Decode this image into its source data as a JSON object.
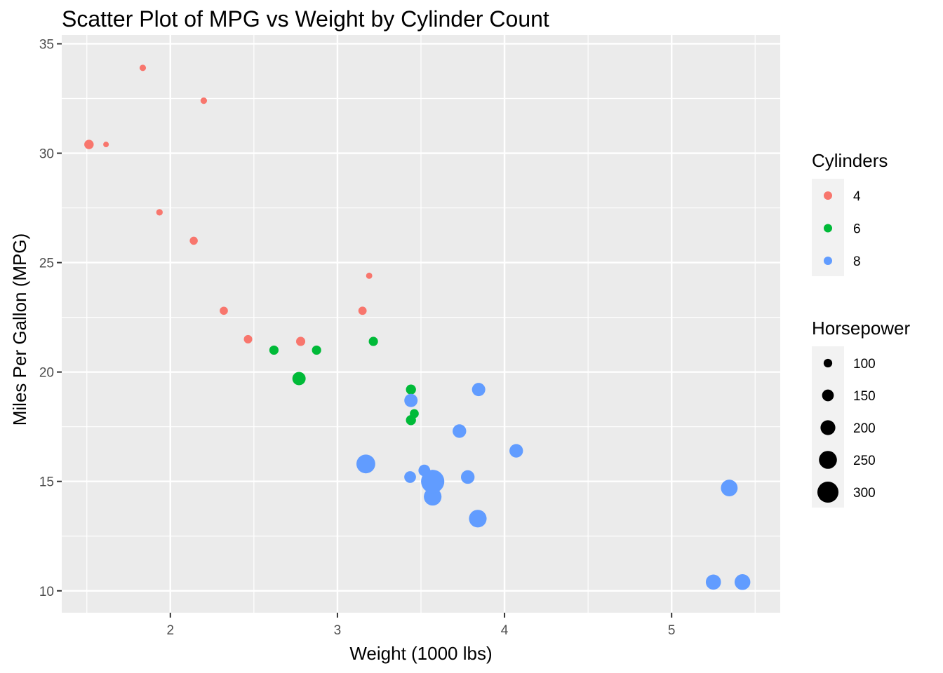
{
  "chart_data": {
    "type": "scatter",
    "title": "Scatter Plot of MPG vs Weight by Cylinder Count",
    "xlabel": "Weight (1000 lbs)",
    "ylabel": "Miles Per Gallon (MPG)",
    "xlim": [
      1.35,
      5.65
    ],
    "ylim": [
      9.0,
      35.4
    ],
    "x_ticks": [
      2,
      3,
      4,
      5
    ],
    "y_ticks": [
      10,
      15,
      20,
      25,
      30,
      35
    ],
    "grid": true,
    "legend_position": "right",
    "color_legend": {
      "title": "Cylinders",
      "entries": [
        {
          "label": "4",
          "color": "#F8766D"
        },
        {
          "label": "6",
          "color": "#00BA38"
        },
        {
          "label": "8",
          "color": "#619CFF"
        }
      ]
    },
    "size_legend": {
      "title": "Horsepower",
      "entries": [
        {
          "label": "100",
          "value": 100
        },
        {
          "label": "150",
          "value": 150
        },
        {
          "label": "200",
          "value": 200
        },
        {
          "label": "250",
          "value": 250
        },
        {
          "label": "300",
          "value": 300
        }
      ]
    },
    "series": [
      {
        "name": "4",
        "color": "#F8766D",
        "points": [
          {
            "x": 1.513,
            "y": 30.4,
            "hp": 113
          },
          {
            "x": 1.615,
            "y": 30.4,
            "hp": 52
          },
          {
            "x": 1.835,
            "y": 33.9,
            "hp": 65
          },
          {
            "x": 1.935,
            "y": 27.3,
            "hp": 66
          },
          {
            "x": 2.14,
            "y": 26.0,
            "hp": 91
          },
          {
            "x": 2.2,
            "y": 32.4,
            "hp": 66
          },
          {
            "x": 2.32,
            "y": 22.8,
            "hp": 93
          },
          {
            "x": 2.465,
            "y": 21.5,
            "hp": 97
          },
          {
            "x": 2.78,
            "y": 21.4,
            "hp": 109
          },
          {
            "x": 3.15,
            "y": 22.8,
            "hp": 95
          },
          {
            "x": 3.19,
            "y": 24.4,
            "hp": 62
          }
        ]
      },
      {
        "name": "6",
        "color": "#00BA38",
        "points": [
          {
            "x": 2.62,
            "y": 21.0,
            "hp": 110
          },
          {
            "x": 2.77,
            "y": 19.7,
            "hp": 175
          },
          {
            "x": 2.875,
            "y": 21.0,
            "hp": 110
          },
          {
            "x": 3.215,
            "y": 21.4,
            "hp": 110
          },
          {
            "x": 3.44,
            "y": 19.2,
            "hp": 123
          },
          {
            "x": 3.44,
            "y": 17.8,
            "hp": 123
          },
          {
            "x": 3.46,
            "y": 18.1,
            "hp": 105
          }
        ]
      },
      {
        "name": "8",
        "color": "#619CFF",
        "points": [
          {
            "x": 3.17,
            "y": 15.8,
            "hp": 264
          },
          {
            "x": 3.435,
            "y": 15.2,
            "hp": 150
          },
          {
            "x": 3.44,
            "y": 18.7,
            "hp": 175
          },
          {
            "x": 3.52,
            "y": 15.5,
            "hp": 150
          },
          {
            "x": 3.57,
            "y": 14.3,
            "hp": 245
          },
          {
            "x": 3.57,
            "y": 15.0,
            "hp": 335
          },
          {
            "x": 3.73,
            "y": 17.3,
            "hp": 180
          },
          {
            "x": 3.78,
            "y": 15.2,
            "hp": 180
          },
          {
            "x": 3.84,
            "y": 13.3,
            "hp": 245
          },
          {
            "x": 3.845,
            "y": 19.2,
            "hp": 175
          },
          {
            "x": 4.07,
            "y": 16.4,
            "hp": 180
          },
          {
            "x": 5.25,
            "y": 10.4,
            "hp": 205
          },
          {
            "x": 5.345,
            "y": 14.7,
            "hp": 230
          },
          {
            "x": 5.424,
            "y": 10.4,
            "hp": 215
          }
        ]
      }
    ]
  }
}
